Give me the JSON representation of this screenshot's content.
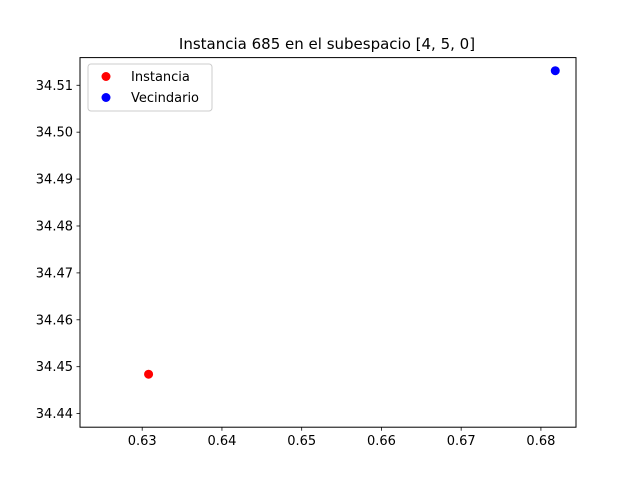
{
  "chart_data": {
    "type": "scatter",
    "title": "Instancia 685 en el subespacio [4, 5, 0]",
    "xlabel": "",
    "ylabel": "",
    "xlim": [
      0.6222,
      0.6844
    ],
    "ylim": [
      34.4371,
      34.5159
    ],
    "xticks": [
      "0.63",
      "0.64",
      "0.65",
      "0.66",
      "0.67",
      "0.68"
    ],
    "yticks": [
      "34.44",
      "34.45",
      "34.46",
      "34.47",
      "34.48",
      "34.49",
      "34.50",
      "34.51"
    ],
    "grid": false,
    "legend_position": "top-left",
    "series": [
      {
        "name": "Instancia",
        "color": "#ff0000",
        "points": [
          {
            "x": 0.6308,
            "y": 34.4484
          }
        ]
      },
      {
        "name": "Vecindario",
        "color": "#0000ff",
        "points": [
          {
            "x": 0.6818,
            "y": 34.5131
          }
        ]
      }
    ]
  }
}
